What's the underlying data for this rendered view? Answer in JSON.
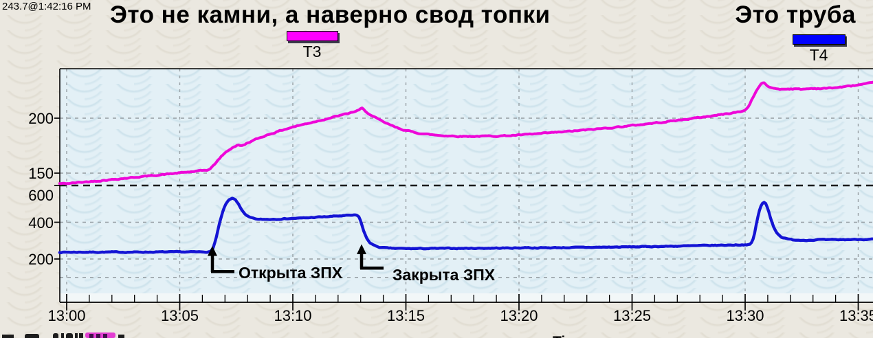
{
  "window": {
    "cursor_readout": "243.7@1:42:16 PM"
  },
  "titles": {
    "main": "Это не камни, а наверно свод топки",
    "right": "Это труба"
  },
  "legend": {
    "t3": {
      "label": "T3",
      "color": "#ff00ff"
    },
    "t4": {
      "label": "T4",
      "color": "#0000ff"
    }
  },
  "annotations": [
    {
      "text": "Открыта ЗПХ",
      "at_time": "13:06.5"
    },
    {
      "text": "Закрыта ЗПХ",
      "at_time": "13:13"
    }
  ],
  "bottom_partial_text": "Ti",
  "chart_data": {
    "type": "line",
    "x_start": "13:00",
    "x_ticks_major": [
      "13:00",
      "13:05",
      "13:10",
      "13:15",
      "13:20",
      "13:25",
      "13:30",
      "13:35"
    ],
    "x_minor_tick_every_min": 1,
    "y_tick_labels": [
      {
        "text": "200",
        "axis": "T3",
        "value": 200
      },
      {
        "text": "150",
        "axis": "T3",
        "value": 150
      },
      {
        "text": "600",
        "axis": "T4",
        "value": 600,
        "label_offset": 14
      },
      {
        "text": "400",
        "axis": "T4",
        "value": 400
      },
      {
        "text": "200",
        "axis": "T4",
        "value": 200
      }
    ],
    "gridlines": {
      "horizontal_gray": [
        {
          "axis": "T3",
          "value": 200
        },
        {
          "axis": "T3",
          "value": 150
        },
        {
          "axis": "T4",
          "value": 400
        },
        {
          "axis": "T4",
          "value": 200
        },
        {
          "axis": "T4",
          "value": 100
        }
      ],
      "separator_black": {
        "axis": "T4",
        "value": 600
      },
      "vertical_at_major_ticks": true
    },
    "series": [
      {
        "name": "T3",
        "axis": "T3",
        "color": "#ee07d8",
        "points": [
          [
            0,
            140.5
          ],
          [
            1,
            142.3
          ],
          [
            2,
            144.2
          ],
          [
            3,
            146.2
          ],
          [
            4,
            148.2
          ],
          [
            5,
            150.2
          ],
          [
            6,
            152.2
          ],
          [
            6.3,
            153.2
          ],
          [
            6.5,
            157
          ],
          [
            6.7,
            162
          ],
          [
            6.9,
            166.5
          ],
          [
            7.1,
            170
          ],
          [
            7.35,
            173.5
          ],
          [
            7.55,
            175.5
          ],
          [
            7.75,
            174.8
          ],
          [
            8,
            177.5
          ],
          [
            8.4,
            181
          ],
          [
            8.9,
            185
          ],
          [
            9.4,
            188.3
          ],
          [
            10,
            192
          ],
          [
            10.6,
            195
          ],
          [
            11.2,
            198
          ],
          [
            11.8,
            201
          ],
          [
            12.4,
            204
          ],
          [
            12.9,
            207
          ],
          [
            13.05,
            209
          ],
          [
            13.2,
            206.5
          ],
          [
            13.5,
            202
          ],
          [
            14,
            196.5
          ],
          [
            14.5,
            192
          ],
          [
            15,
            188.8
          ],
          [
            15.5,
            186.6
          ],
          [
            16,
            185.2
          ],
          [
            16.5,
            184.3
          ],
          [
            17,
            183.8
          ],
          [
            17.5,
            183.5
          ],
          [
            18,
            183.5
          ],
          [
            18.5,
            183.6
          ],
          [
            19,
            183.8
          ],
          [
            19.5,
            184.1
          ],
          [
            20,
            184.6
          ],
          [
            21,
            186
          ],
          [
            22,
            187.6
          ],
          [
            23,
            189.3
          ],
          [
            24,
            191.2
          ],
          [
            25,
            193.3
          ],
          [
            26,
            195.6
          ],
          [
            27,
            198
          ],
          [
            28,
            200.6
          ],
          [
            29,
            203.4
          ],
          [
            29.9,
            206.3
          ],
          [
            30.1,
            209
          ],
          [
            30.3,
            217
          ],
          [
            30.5,
            225
          ],
          [
            30.7,
            231
          ],
          [
            30.8,
            232.8
          ],
          [
            30.95,
            229.5
          ],
          [
            31.2,
            227.3
          ],
          [
            31.6,
            226.4
          ],
          [
            32,
            226.8
          ],
          [
            32.5,
            226.3
          ],
          [
            33,
            227.1
          ],
          [
            33.5,
            227
          ],
          [
            34,
            227.8
          ],
          [
            34.5,
            228.8
          ],
          [
            35,
            230.2
          ],
          [
            35.5,
            231.6
          ],
          [
            35.9,
            232.6
          ]
        ]
      },
      {
        "name": "T4",
        "axis": "T4",
        "color": "#1414d4",
        "points": [
          [
            0,
            237
          ],
          [
            1,
            237.3
          ],
          [
            2,
            237.6
          ],
          [
            3,
            237.5
          ],
          [
            4,
            238
          ],
          [
            5,
            238.2
          ],
          [
            6,
            238.5
          ],
          [
            6.38,
            239.5
          ],
          [
            6.5,
            268
          ],
          [
            6.62,
            320
          ],
          [
            6.74,
            385
          ],
          [
            6.86,
            440
          ],
          [
            7,
            490
          ],
          [
            7.15,
            518
          ],
          [
            7.3,
            530
          ],
          [
            7.45,
            524
          ],
          [
            7.6,
            500
          ],
          [
            7.75,
            465
          ],
          [
            7.9,
            440
          ],
          [
            8.05,
            428
          ],
          [
            8.25,
            420
          ],
          [
            8.5,
            415
          ],
          [
            8.8,
            415.5
          ],
          [
            9.2,
            417
          ],
          [
            9.6,
            419
          ],
          [
            10,
            421
          ],
          [
            10.5,
            423
          ],
          [
            11,
            427
          ],
          [
            11.5,
            430
          ],
          [
            12,
            434
          ],
          [
            12.5,
            437
          ],
          [
            12.8,
            438.5
          ],
          [
            12.92,
            430
          ],
          [
            13.02,
            400
          ],
          [
            13.12,
            356
          ],
          [
            13.25,
            315
          ],
          [
            13.4,
            290
          ],
          [
            13.6,
            273
          ],
          [
            13.85,
            263.5
          ],
          [
            14.2,
            259
          ],
          [
            14.6,
            257.2
          ],
          [
            15,
            256.6
          ],
          [
            15.5,
            256.6
          ],
          [
            16,
            257
          ],
          [
            16.5,
            257.4
          ],
          [
            17,
            257.7
          ],
          [
            17.5,
            258
          ],
          [
            18,
            258.3
          ],
          [
            18.5,
            258.7
          ],
          [
            19,
            259
          ],
          [
            19.5,
            259.5
          ],
          [
            20,
            260.2
          ],
          [
            20.35,
            262.8
          ],
          [
            20.6,
            260.6
          ],
          [
            21,
            260.9
          ],
          [
            21.5,
            261.4
          ],
          [
            22,
            261.9
          ],
          [
            22.5,
            262.5
          ],
          [
            23,
            263.1
          ],
          [
            23.5,
            263.8
          ],
          [
            24,
            264.5
          ],
          [
            24.5,
            265.3
          ],
          [
            25,
            266.1
          ],
          [
            25.5,
            267
          ],
          [
            26,
            268
          ],
          [
            26.5,
            269
          ],
          [
            27,
            270.1
          ],
          [
            27.5,
            271.3
          ],
          [
            28,
            272.5
          ],
          [
            28.5,
            273.8
          ],
          [
            29,
            275.1
          ],
          [
            29.5,
            276.4
          ],
          [
            29.95,
            277.6
          ],
          [
            30.2,
            278.5
          ],
          [
            30.32,
            292
          ],
          [
            30.42,
            340
          ],
          [
            30.52,
            405
          ],
          [
            30.62,
            460
          ],
          [
            30.72,
            495
          ],
          [
            30.82,
            509
          ],
          [
            30.92,
            500
          ],
          [
            31.02,
            468
          ],
          [
            31.12,
            425
          ],
          [
            31.25,
            378
          ],
          [
            31.4,
            342
          ],
          [
            31.6,
            320
          ],
          [
            31.85,
            309
          ],
          [
            32.1,
            304.5
          ],
          [
            32.5,
            302.5
          ],
          [
            33,
            303
          ],
          [
            33.3,
            306
          ],
          [
            33.55,
            303.8
          ],
          [
            34,
            304.6
          ],
          [
            34.5,
            305.6
          ],
          [
            35,
            306.6
          ],
          [
            35.5,
            307.6
          ],
          [
            35.9,
            308.2
          ]
        ]
      }
    ]
  }
}
